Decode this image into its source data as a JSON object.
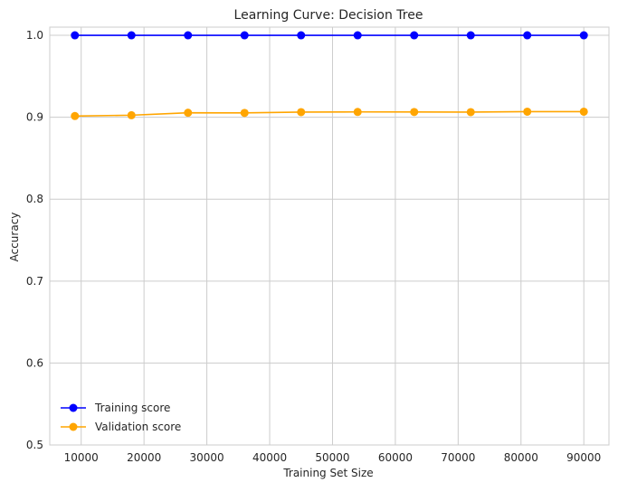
{
  "chart_data": {
    "type": "line",
    "title": "Learning Curve: Decision Tree",
    "xlabel": "Training Set Size",
    "ylabel": "Accuracy",
    "xlim": [
      5000,
      94000
    ],
    "ylim": [
      0.5,
      1.01
    ],
    "xticks": [
      10000,
      20000,
      30000,
      40000,
      50000,
      60000,
      70000,
      80000,
      90000
    ],
    "xtick_labels": [
      "10000",
      "20000",
      "30000",
      "40000",
      "50000",
      "60000",
      "70000",
      "80000",
      "90000"
    ],
    "yticks": [
      0.5,
      0.6,
      0.7,
      0.8,
      0.9,
      1.0
    ],
    "ytick_labels": [
      "0.5",
      "0.6",
      "0.7",
      "0.8",
      "0.9",
      "1.0"
    ],
    "grid": true,
    "legend_position": "lower-left",
    "x": [
      9000,
      18000,
      27000,
      36000,
      45000,
      54000,
      63000,
      72000,
      81000,
      90000
    ],
    "series": [
      {
        "name": "Training score",
        "color": "#0000ff",
        "marker": "circle",
        "values": [
          1.0,
          1.0,
          1.0,
          1.0,
          1.0,
          1.0,
          1.0,
          1.0,
          1.0,
          1.0
        ]
      },
      {
        "name": "Validation score",
        "color": "#ffa500",
        "marker": "circle",
        "values": [
          0.9015,
          0.9025,
          0.9055,
          0.9053,
          0.9063,
          0.9065,
          0.9064,
          0.9063,
          0.9068,
          0.9068
        ]
      }
    ]
  }
}
